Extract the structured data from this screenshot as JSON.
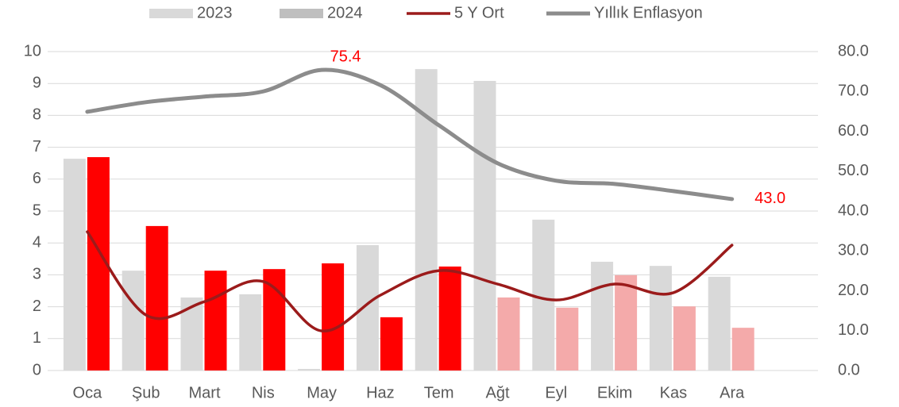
{
  "chart_data": {
    "type": "bar",
    "categories": [
      "Oca",
      "Şub",
      "Mart",
      "Nis",
      "May",
      "Haz",
      "Tem",
      "Ağt",
      "Eyl",
      "Ekim",
      "Kas",
      "Ara"
    ],
    "series": [
      {
        "name": "2023",
        "type": "bar",
        "color": "#d9d9d9",
        "values": [
          6.64,
          3.13,
          2.29,
          2.39,
          0.05,
          3.93,
          9.45,
          9.08,
          4.73,
          3.41,
          3.28,
          2.94
        ]
      },
      {
        "name": "2024",
        "type": "bar",
        "color": "#bfbfbf",
        "colors": [
          "#ff0000",
          "#ff0000",
          "#ff0000",
          "#ff0000",
          "#ff0000",
          "#ff0000",
          "#ff0000",
          "#f4aaaa",
          "#f4aaaa",
          "#f4aaaa",
          "#f4aaaa",
          "#f4aaaa"
        ],
        "values": [
          6.69,
          4.53,
          3.13,
          3.18,
          3.36,
          1.67,
          3.26,
          2.29,
          1.97,
          2.99,
          2.01,
          1.34
        ]
      },
      {
        "name": "5 Y Ort",
        "type": "line",
        "color": "#9b1b1b",
        "values": [
          4.35,
          1.74,
          2.16,
          2.79,
          1.24,
          2.36,
          3.13,
          2.71,
          2.21,
          2.71,
          2.44,
          3.93
        ]
      },
      {
        "name": "Yıllık Enflasyon",
        "type": "line",
        "axis": "y2",
        "color": "#8c8c8c",
        "values": [
          64.9,
          67.3,
          68.7,
          70.0,
          75.4,
          71.6,
          61.5,
          52.0,
          47.6,
          46.8,
          45.0,
          43.0
        ],
        "value_labels": [
          null,
          null,
          null,
          null,
          "75.4",
          null,
          null,
          null,
          null,
          null,
          null,
          "43.0"
        ],
        "label_color": "#ff0000"
      }
    ],
    "ylim": [
      0,
      10
    ],
    "yticks": [
      0,
      1,
      2,
      3,
      4,
      5,
      6,
      7,
      8,
      9,
      10
    ],
    "y2lim": [
      0,
      80
    ],
    "y2ticks": [
      {
        "value": 0,
        "label": "0.0"
      },
      {
        "value": 10,
        "label": "10.0"
      },
      {
        "value": 20,
        "label": "20.0"
      },
      {
        "value": 30,
        "label": "30.0"
      },
      {
        "value": 40,
        "label": "40.0"
      },
      {
        "value": 50,
        "label": "50.0"
      },
      {
        "value": 60,
        "label": "60.0"
      },
      {
        "value": 70,
        "label": "70.0"
      },
      {
        "value": 80,
        "label": "80.0"
      }
    ],
    "grid": true,
    "legend": "top"
  }
}
